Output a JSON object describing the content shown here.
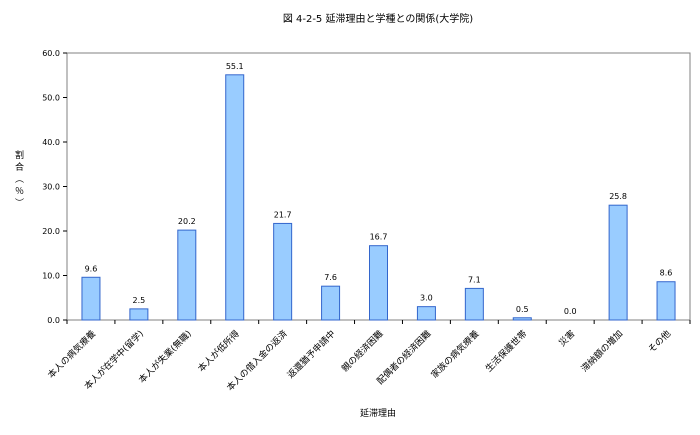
{
  "chart_data": {
    "type": "bar",
    "title": "図 4-2-5 延滞理由と学種との関係(大学院)",
    "xlabel": "延滞理由",
    "ylabel": "割合（％）",
    "ylim": [
      0,
      60
    ],
    "yticks": [
      "0.0",
      "10.0",
      "20.0",
      "30.0",
      "40.0",
      "50.0",
      "60.0"
    ],
    "grid": false,
    "legend": "none",
    "bar_color": "#99ccff",
    "bar_edge_color": "#3366cc",
    "categories": [
      "本人の病気療養",
      "本人が在学中(留学)",
      "本人が失業(無職)",
      "本人が低所得",
      "本人の借入金の返済",
      "返還猶予申請中",
      "親の経済困難",
      "配偶者の経済困難",
      "家族の病気療養",
      "生活保護世帯",
      "災害",
      "滞納額の増加",
      "その他"
    ],
    "values": [
      9.6,
      2.5,
      20.2,
      55.1,
      21.7,
      7.6,
      16.7,
      3.0,
      7.1,
      0.5,
      0.0,
      25.8,
      8.6
    ],
    "value_labels": [
      "9.6",
      "2.5",
      "20.2",
      "55.1",
      "21.7",
      "7.6",
      "16.7",
      "3.0",
      "7.1",
      "0.5",
      "0.0",
      "25.8",
      "8.6"
    ]
  }
}
